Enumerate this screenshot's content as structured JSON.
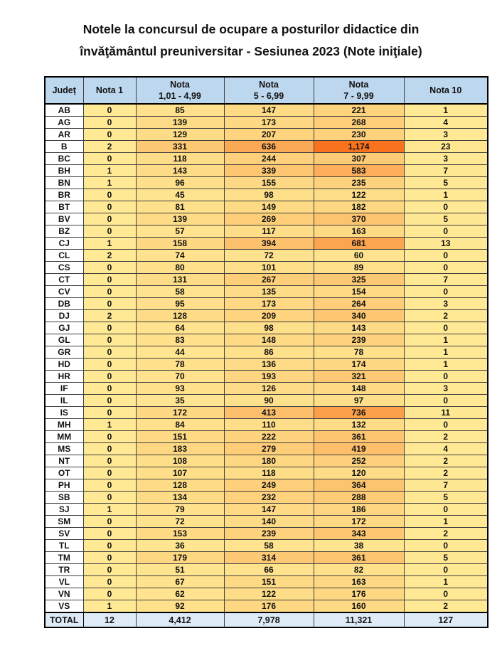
{
  "title": {
    "line1": "Notele la concursul de ocupare a posturilor didactice din",
    "line2": "învăţământul preuniversitar - Sesiunea 2023 (Note iniţiale)"
  },
  "table": {
    "columns": [
      {
        "line1": "Județ",
        "line2": ""
      },
      {
        "line1": "Nota 1",
        "line2": ""
      },
      {
        "line1": "Nota",
        "line2": "1,01 - 4,99"
      },
      {
        "line1": "Nota",
        "line2": "5 - 6,99"
      },
      {
        "line1": "Nota",
        "line2": "7 - 9,99"
      },
      {
        "line1": "Nota 10",
        "line2": ""
      }
    ],
    "rows": [
      {
        "judet": "AB",
        "values": [
          0,
          85,
          147,
          221,
          1
        ]
      },
      {
        "judet": "AG",
        "values": [
          0,
          139,
          173,
          268,
          4
        ]
      },
      {
        "judet": "AR",
        "values": [
          0,
          129,
          207,
          230,
          3
        ]
      },
      {
        "judet": "B",
        "values": [
          2,
          331,
          636,
          1174,
          23
        ]
      },
      {
        "judet": "BC",
        "values": [
          0,
          118,
          244,
          307,
          3
        ]
      },
      {
        "judet": "BH",
        "values": [
          1,
          143,
          339,
          583,
          7
        ]
      },
      {
        "judet": "BN",
        "values": [
          1,
          96,
          155,
          235,
          5
        ]
      },
      {
        "judet": "BR",
        "values": [
          0,
          45,
          98,
          122,
          1
        ]
      },
      {
        "judet": "BT",
        "values": [
          0,
          81,
          149,
          182,
          0
        ]
      },
      {
        "judet": "BV",
        "values": [
          0,
          139,
          269,
          370,
          5
        ]
      },
      {
        "judet": "BZ",
        "values": [
          0,
          57,
          117,
          163,
          0
        ]
      },
      {
        "judet": "CJ",
        "values": [
          1,
          158,
          394,
          681,
          13
        ]
      },
      {
        "judet": "CL",
        "values": [
          2,
          74,
          72,
          60,
          0
        ]
      },
      {
        "judet": "CS",
        "values": [
          0,
          80,
          101,
          89,
          0
        ]
      },
      {
        "judet": "CT",
        "values": [
          0,
          131,
          267,
          325,
          7
        ]
      },
      {
        "judet": "CV",
        "values": [
          0,
          58,
          135,
          154,
          0
        ]
      },
      {
        "judet": "DB",
        "values": [
          0,
          95,
          173,
          264,
          3
        ]
      },
      {
        "judet": "DJ",
        "values": [
          2,
          128,
          209,
          340,
          2
        ]
      },
      {
        "judet": "GJ",
        "values": [
          0,
          64,
          98,
          143,
          0
        ]
      },
      {
        "judet": "GL",
        "values": [
          0,
          83,
          148,
          239,
          1
        ]
      },
      {
        "judet": "GR",
        "values": [
          0,
          44,
          86,
          78,
          1
        ]
      },
      {
        "judet": "HD",
        "values": [
          0,
          78,
          136,
          174,
          1
        ]
      },
      {
        "judet": "HR",
        "values": [
          0,
          70,
          193,
          321,
          0
        ]
      },
      {
        "judet": "IF",
        "values": [
          0,
          93,
          126,
          148,
          3
        ]
      },
      {
        "judet": "IL",
        "values": [
          0,
          35,
          90,
          97,
          0
        ]
      },
      {
        "judet": "IS",
        "values": [
          0,
          172,
          413,
          736,
          11
        ]
      },
      {
        "judet": "MH",
        "values": [
          1,
          84,
          110,
          132,
          0
        ]
      },
      {
        "judet": "MM",
        "values": [
          0,
          151,
          222,
          361,
          2
        ]
      },
      {
        "judet": "MS",
        "values": [
          0,
          183,
          279,
          419,
          4
        ]
      },
      {
        "judet": "NT",
        "values": [
          0,
          108,
          180,
          252,
          2
        ]
      },
      {
        "judet": "OT",
        "values": [
          0,
          107,
          118,
          120,
          2
        ]
      },
      {
        "judet": "PH",
        "values": [
          0,
          128,
          249,
          364,
          7
        ]
      },
      {
        "judet": "SB",
        "values": [
          0,
          134,
          232,
          288,
          5
        ]
      },
      {
        "judet": "SJ",
        "values": [
          1,
          79,
          147,
          186,
          0
        ]
      },
      {
        "judet": "SM",
        "values": [
          0,
          72,
          140,
          172,
          1
        ]
      },
      {
        "judet": "SV",
        "values": [
          0,
          153,
          239,
          343,
          2
        ]
      },
      {
        "judet": "TL",
        "values": [
          0,
          36,
          58,
          38,
          0
        ]
      },
      {
        "judet": "TM",
        "values": [
          0,
          179,
          314,
          361,
          5
        ]
      },
      {
        "judet": "TR",
        "values": [
          0,
          51,
          66,
          82,
          0
        ]
      },
      {
        "judet": "VL",
        "values": [
          0,
          67,
          151,
          163,
          1
        ]
      },
      {
        "judet": "VN",
        "values": [
          0,
          62,
          122,
          176,
          0
        ]
      },
      {
        "judet": "VS",
        "values": [
          1,
          92,
          176,
          160,
          2
        ]
      }
    ],
    "total": {
      "label": "TOTAL",
      "values": [
        12,
        4412,
        7978,
        11321,
        127
      ]
    }
  },
  "colors": {
    "header_bg": "#BDD7EE",
    "total_bg": "#DEEBF7",
    "county_bg": "#FFFFFF",
    "heat_min": "#FFE994",
    "heat_max": "#F9731F"
  },
  "heatmap": {
    "min_value": 0,
    "max_value": 1174
  }
}
